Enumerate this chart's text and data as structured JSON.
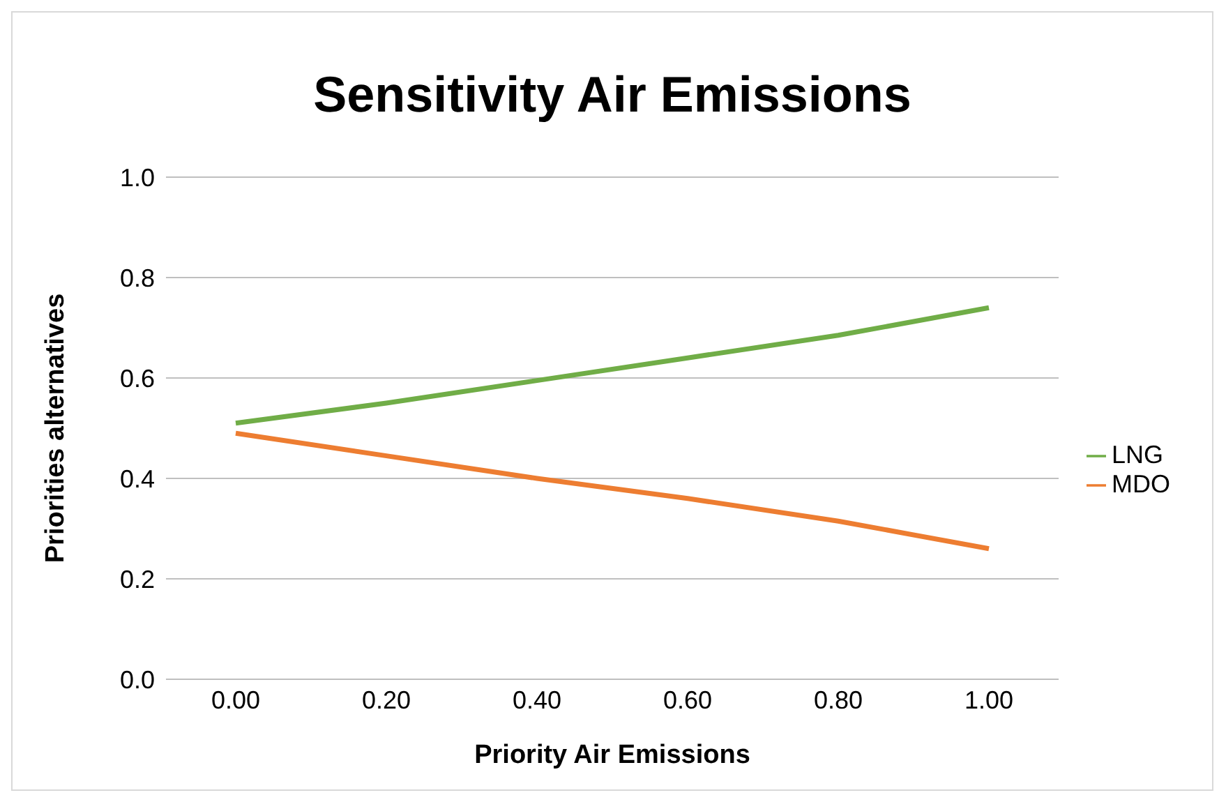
{
  "chart_data": {
    "type": "line",
    "title": "Sensitivity Air Emissions",
    "xlabel": "Priority Air Emissions",
    "ylabel": "Priorities alternatives",
    "categories": [
      "0.00",
      "0.20",
      "0.40",
      "0.60",
      "0.80",
      "1.00"
    ],
    "series": [
      {
        "name": "MDO",
        "color": "#ed7d31",
        "values": [
          0.49,
          0.445,
          0.4,
          0.36,
          0.315,
          0.26
        ]
      },
      {
        "name": "LNG",
        "color": "#70ad47",
        "values": [
          0.51,
          0.55,
          0.595,
          0.64,
          0.685,
          0.74
        ]
      }
    ],
    "ylim": [
      0,
      1
    ],
    "yticks": [
      {
        "value": 0,
        "label": "0.0"
      },
      {
        "value": 0.2,
        "label": "0.2"
      },
      {
        "value": 0.4,
        "label": "0.4"
      },
      {
        "value": 0.6,
        "label": "0.6"
      },
      {
        "value": 0.8,
        "label": "0.8"
      },
      {
        "value": 1,
        "label": "1.0"
      }
    ],
    "grid": "y",
    "legend": "right",
    "marker": "none",
    "line_style": "solid"
  }
}
